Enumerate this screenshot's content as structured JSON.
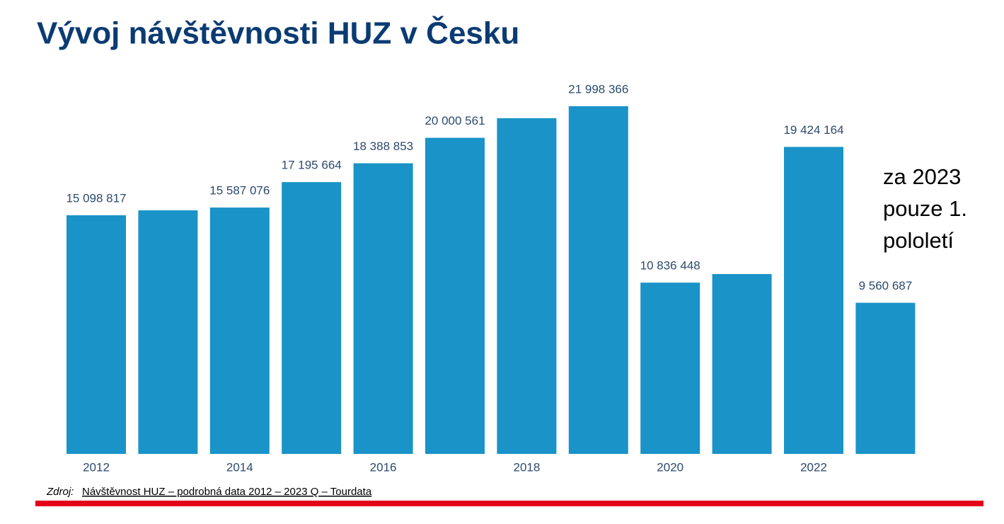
{
  "chart_data": {
    "type": "bar",
    "title": "Vývoj návštěvnosti HUZ v Česku",
    "categories": [
      "2012",
      null,
      "2014",
      null,
      "2016",
      null,
      "2018",
      null,
      "2020",
      null,
      "2022",
      null
    ],
    "values": [
      15098817,
      15410000,
      15587076,
      17195664,
      18388853,
      20000561,
      21240000,
      21998366,
      10836448,
      11380000,
      19424164,
      9560687
    ],
    "value_labels": [
      "15 098 817",
      null,
      "15 587 076",
      "17 195 664",
      "18 388 853",
      "20 000 561",
      null,
      "21 998 366",
      "10 836 448",
      null,
      "19 424 164",
      "9 560 687"
    ],
    "color": "#1a93c8",
    "annotation": [
      "za 2023",
      "pouze 1.",
      "pololetí"
    ],
    "source_prefix": "Zdroj:",
    "source_text": "Návštěvnost HUZ – podrobná data 2012 – 2023 Q – Tourdata"
  }
}
